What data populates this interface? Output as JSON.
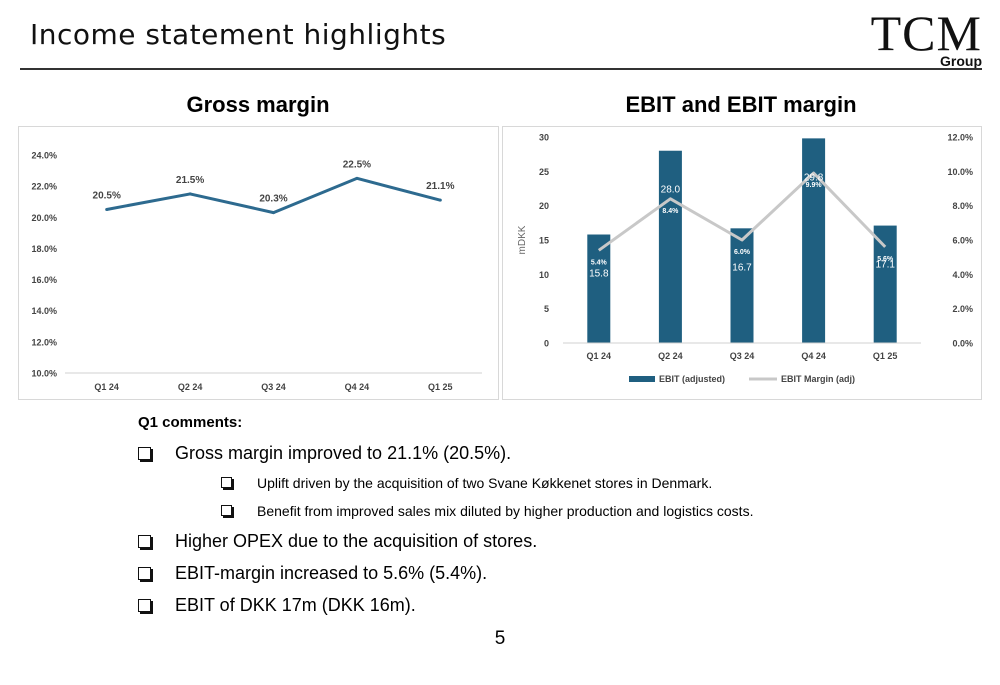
{
  "header": {
    "title": "Income statement highlights",
    "logo_main": "TCM",
    "logo_sub": "Group"
  },
  "chart_data": [
    {
      "type": "line",
      "title": "Gross margin",
      "categories": [
        "Q1 24",
        "Q2 24",
        "Q3 24",
        "Q4 24",
        "Q1 25"
      ],
      "series": [
        {
          "values": [
            20.5,
            21.5,
            20.3,
            22.5,
            21.1
          ],
          "labels": [
            "20.5%",
            "21.5%",
            "20.3%",
            "22.5%",
            "21.1%"
          ],
          "color": "#2d6a8f"
        }
      ],
      "ylim": [
        10,
        24
      ],
      "yticks": [
        10,
        12,
        14,
        16,
        18,
        20,
        22,
        24
      ],
      "ytick_labels": [
        "10.0%",
        "12.0%",
        "14.0%",
        "16.0%",
        "18.0%",
        "20.0%",
        "22.0%",
        "24.0%"
      ],
      "grid": false,
      "legend": "none"
    },
    {
      "type": "bar",
      "title": "EBIT and EBIT margin",
      "categories": [
        "Q1 24",
        "Q2 24",
        "Q3 24",
        "Q4 24",
        "Q1 25"
      ],
      "ylabel": "mDKK",
      "ylim": [
        0,
        30
      ],
      "yticks": [
        0,
        5,
        10,
        15,
        20,
        25,
        30
      ],
      "y2lim": [
        0,
        12
      ],
      "y2ticks": [
        0,
        2,
        4,
        6,
        8,
        10,
        12
      ],
      "y2tick_labels": [
        "0.0%",
        "2.0%",
        "4.0%",
        "6.0%",
        "8.0%",
        "10.0%",
        "12.0%"
      ],
      "series": [
        {
          "name": "EBIT (adjusted)",
          "kind": "bar",
          "axis": "left",
          "values": [
            15.8,
            28.0,
            16.7,
            29.8,
            17.1
          ],
          "labels": [
            "15.8",
            "28.0",
            "16.7",
            "29.8",
            "17.1"
          ],
          "color": "#1f5f80"
        },
        {
          "name": "EBIT Margin (adj)",
          "kind": "line",
          "axis": "right",
          "values": [
            5.4,
            8.4,
            6.0,
            9.9,
            5.6
          ],
          "labels": [
            "5.4%",
            "8.4%",
            "6.0%",
            "9.9%",
            "5.6%"
          ],
          "color": "#c8c8c8"
        }
      ],
      "grid": false,
      "legend": "bottom"
    }
  ],
  "comments": {
    "heading": "Q1 comments:",
    "items": [
      {
        "text": "Gross margin improved to 21.1% (20.5%).",
        "level": 1
      },
      {
        "text": "Uplift driven by the acquisition of two Svane Køkkenet stores in Denmark.",
        "level": 2
      },
      {
        "text": "Benefit from improved sales mix diluted by higher production and logistics costs.",
        "level": 2
      },
      {
        "text": "Higher OPEX due to the acquisition of stores.",
        "level": 1
      },
      {
        "text": "EBIT-margin increased to 5.6% (5.4%).",
        "level": 1
      },
      {
        "text": "EBIT of DKK 17m (DKK 16m).",
        "level": 1
      }
    ]
  },
  "footer": {
    "page_number": "5"
  }
}
